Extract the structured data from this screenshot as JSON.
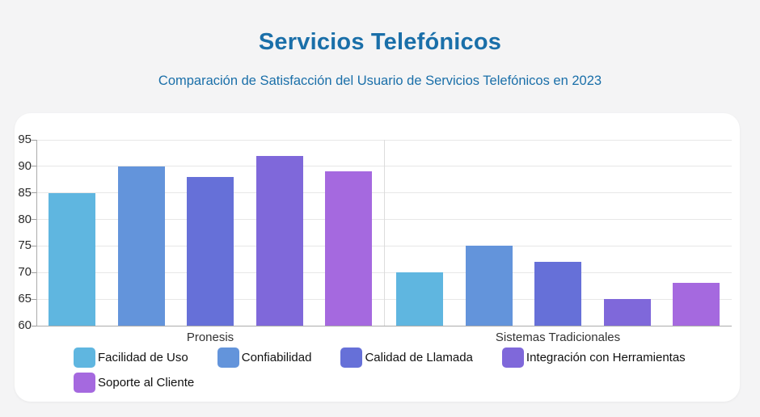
{
  "header": {
    "title": "Servicios Telefónicos",
    "subtitle": "Comparación de Satisfacción del Usuario de Servicios Telefónicos en 2023",
    "title_color": "#1a6fa9"
  },
  "chart_data": {
    "type": "bar",
    "title": "Servicios Telefónicos",
    "subtitle": "Comparación de Satisfacción del Usuario de Servicios Telefónicos en 2023",
    "categories": [
      "Pronesis",
      "Sistemas Tradicionales"
    ],
    "series": [
      {
        "name": "Facilidad de Uso",
        "color": "#5fb6e0",
        "values": [
          85,
          70
        ]
      },
      {
        "name": "Confiabilidad",
        "color": "#6394db",
        "values": [
          90,
          75
        ]
      },
      {
        "name": "Calidad de Llamada",
        "color": "#6670d8",
        "values": [
          88,
          72
        ]
      },
      {
        "name": "Integración con Herramientas",
        "color": "#7f68da",
        "values": [
          92,
          65
        ]
      },
      {
        "name": "Soporte al Cliente",
        "color": "#a569df",
        "values": [
          89,
          68
        ]
      }
    ],
    "xlabel": "",
    "ylabel": "",
    "ylim": [
      60,
      95
    ],
    "yticks": [
      60,
      65,
      70,
      75,
      80,
      85,
      90,
      95
    ],
    "grid": true,
    "legend_position": "bottom"
  }
}
